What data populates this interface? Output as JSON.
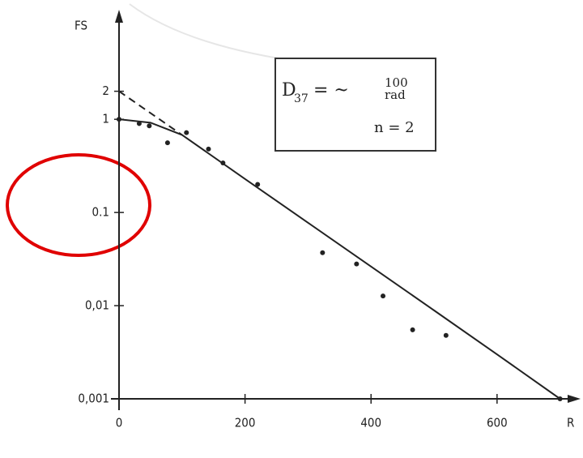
{
  "chart_data": {
    "type": "scatter",
    "y_label": "FS",
    "x_label": "R",
    "log_y": true,
    "xlim": [
      0,
      730
    ],
    "ylim": [
      0.001,
      15
    ],
    "xticks": [
      0,
      200,
      400,
      600
    ],
    "yticks": [
      2,
      1,
      0.1,
      {
        "value": 0.01,
        "label": "0,01"
      },
      {
        "value": 0.001,
        "label": "0,001"
      }
    ],
    "points": {
      "color": "#222222",
      "x": [
        0,
        32,
        48,
        77,
        107,
        142,
        165,
        220,
        323,
        377,
        419,
        466,
        519,
        700
      ],
      "values": [
        1,
        0.9,
        0.85,
        0.56,
        0.72,
        0.48,
        0.34,
        0.2,
        0.037,
        0.028,
        0.0127,
        0.0055,
        0.0048,
        0.001
      ]
    },
    "fit": {
      "color": "#222222",
      "x": [
        0,
        50,
        100,
        200,
        300,
        400,
        500,
        600,
        700
      ],
      "values": [
        1,
        0.92,
        0.68,
        0.229,
        0.0776,
        0.0263,
        0.0089,
        0.003,
        0.001
      ]
    },
    "extrapolation": {
      "color": "#222222",
      "x": [
        0,
        100
      ],
      "values": [
        2,
        0.68
      ]
    },
    "annotation": {
      "symbol": "D",
      "subscript": "37",
      "relation": "= ~",
      "value": "100",
      "unit": "rad",
      "n": "n = 2"
    }
  }
}
